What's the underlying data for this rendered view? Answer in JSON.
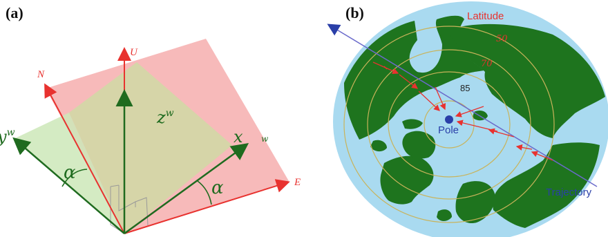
{
  "panel_a": {
    "label": "(a)",
    "axis_up": "U",
    "axis_north": "N",
    "axis_east": "E",
    "axis_zw": "z",
    "axis_zw_sup": "w",
    "axis_x": "x",
    "axis_yw": "y",
    "axis_yw_sup": "w",
    "axis_w": "w",
    "angle_left": "α",
    "angle_right": "α",
    "colors": {
      "red": "#e8322f",
      "green": "#1f6b1f",
      "pink": "#f4a3a3",
      "light_green": "#cde8b9"
    }
  },
  "panel_b": {
    "label": "(b)",
    "latitude_label": "Latitude",
    "lat_50": "50",
    "lat_70": "70",
    "lat_85": "85",
    "pole_label": "Pole",
    "trajectory_label": "Trajectory",
    "colors": {
      "ocean": "#a9daf0",
      "land": "#1e741e",
      "ring": "#c9b35a",
      "trajectory": "#6a6acb",
      "arrows": "#e8322f",
      "pole": "#2a3fa8"
    }
  }
}
